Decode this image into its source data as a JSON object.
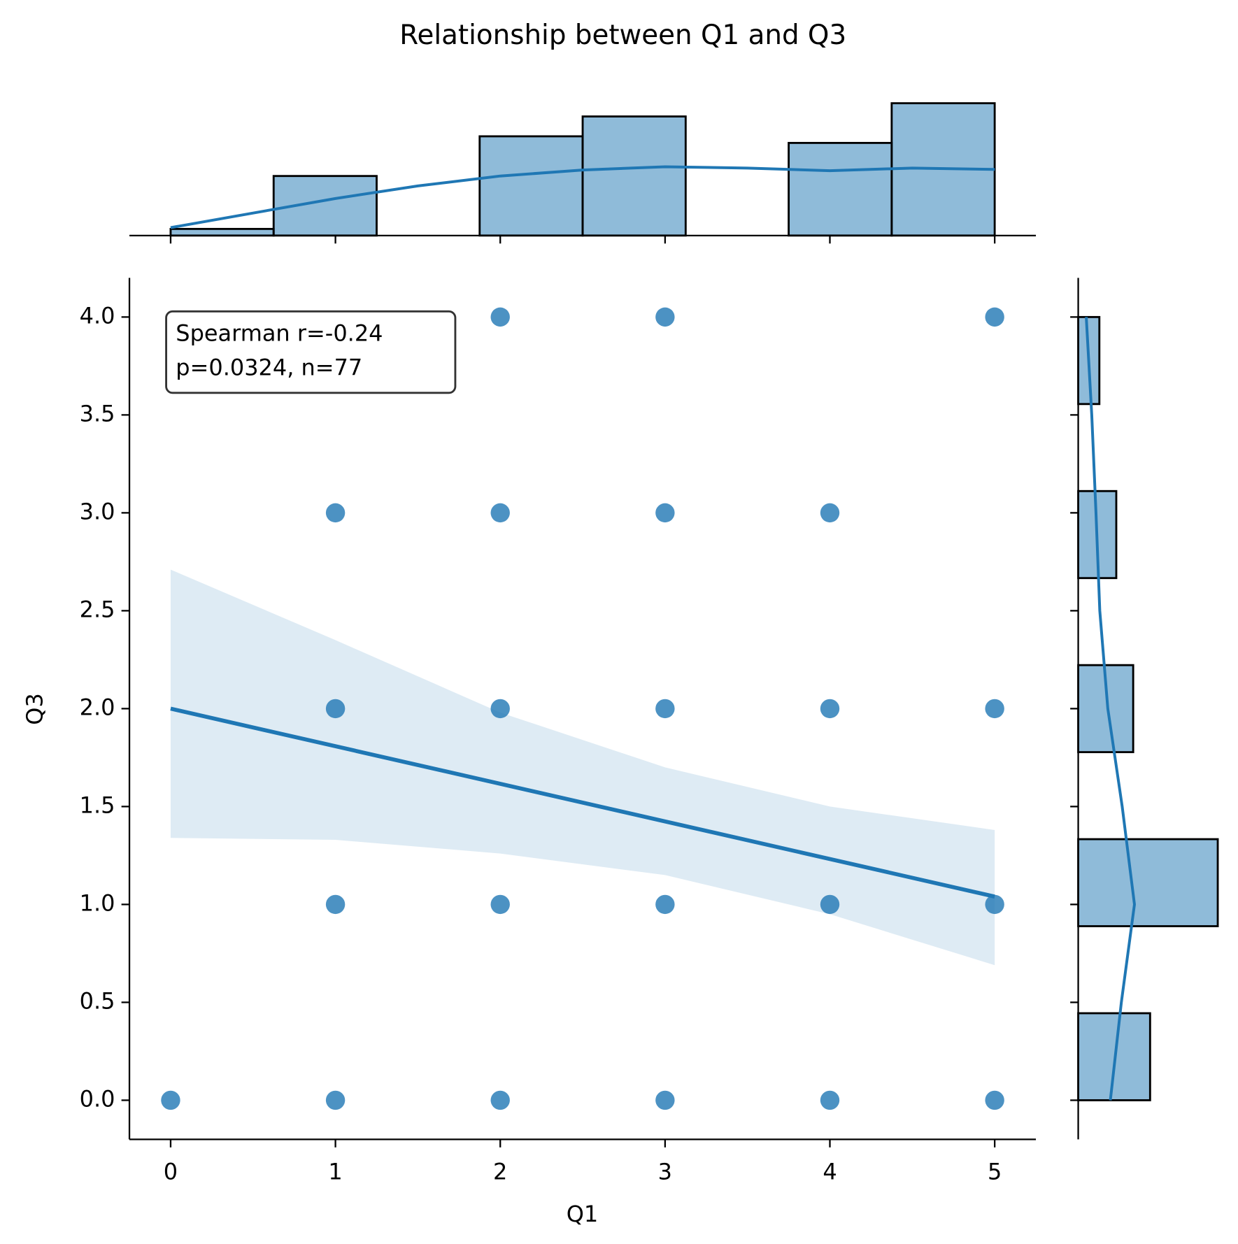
{
  "chart_data": [
    {
      "type": "scatter",
      "title": "Relationship between Q1 and Q3",
      "xlabel": "Q1",
      "ylabel": "Q3",
      "color": "#1f77b4",
      "x": [
        2,
        3,
        5,
        1,
        2,
        3,
        4,
        1,
        2,
        3,
        4,
        5,
        1,
        2,
        3,
        4,
        5,
        0,
        1,
        2,
        3,
        4,
        5
      ],
      "y": [
        4,
        4,
        4,
        3,
        3,
        3,
        3,
        2,
        2,
        2,
        2,
        2,
        1,
        1,
        1,
        1,
        1,
        0,
        0,
        0,
        0,
        0,
        0
      ],
      "regression": {
        "x": [
          0,
          5
        ],
        "y": [
          2.0,
          1.04
        ]
      },
      "ci": {
        "x": [
          0,
          1,
          2,
          3,
          4,
          5
        ],
        "upper": [
          2.71,
          2.35,
          1.98,
          1.7,
          1.5,
          1.38
        ],
        "lower": [
          1.34,
          1.33,
          1.26,
          1.15,
          0.95,
          0.69
        ]
      },
      "annotation": [
        "Spearman r=-0.24",
        "p=0.0324, n=77"
      ],
      "xlim": [
        -0.25,
        5.25
      ],
      "ylim": [
        -0.2,
        4.2
      ],
      "xticks": [
        0,
        1,
        2,
        3,
        4,
        5
      ],
      "yticks": [
        {
          "value": 0,
          "label": "0.0"
        },
        {
          "value": 0.5,
          "label": "0.5"
        },
        {
          "value": 1,
          "label": "1.0"
        },
        {
          "value": 1.5,
          "label": "1.5"
        },
        {
          "value": 2,
          "label": "2.0"
        },
        {
          "value": 2.5,
          "label": "2.5"
        },
        {
          "value": 3,
          "label": "3.0"
        },
        {
          "value": 3.5,
          "label": "3.5"
        },
        {
          "value": 4,
          "label": "4.0"
        }
      ]
    },
    {
      "type": "histogram",
      "orientation": "vertical",
      "color": "#1f77b4",
      "bins": [
        0,
        0.625,
        1.25,
        1.875,
        2.5,
        3.125,
        3.75,
        4.375,
        5
      ],
      "counts": [
        1,
        9,
        0,
        15,
        18,
        0,
        14,
        20
      ],
      "kde": {
        "x": [
          0,
          0.5,
          1,
          1.5,
          2,
          2.5,
          3,
          3.5,
          4,
          4.5,
          5
        ],
        "y": [
          1.2,
          3.4,
          5.6,
          7.5,
          9.0,
          9.9,
          10.4,
          10.2,
          9.8,
          10.2,
          10.0
        ]
      },
      "xlim": [
        -0.25,
        5.25
      ],
      "ylim": [
        0,
        21
      ],
      "xticks": [
        0,
        1,
        2,
        3,
        4,
        5
      ]
    },
    {
      "type": "histogram",
      "orientation": "horizontal",
      "color": "#1f77b4",
      "bins": [
        0,
        0.4444,
        0.8889,
        1.3333,
        1.7778,
        2.2222,
        2.6667,
        3.1111,
        3.5556,
        4
      ],
      "counts": [
        17,
        0,
        33,
        0,
        13,
        0,
        9,
        0,
        5
      ],
      "kde": {
        "y": [
          0,
          0.5,
          1,
          1.5,
          2,
          2.5,
          3,
          3.5,
          4
        ],
        "x": [
          7.6,
          10.2,
          13.3,
          10.4,
          7.0,
          5.1,
          4.2,
          3.2,
          1.9
        ]
      },
      "ylim": [
        -0.2,
        4.2
      ],
      "xlim": [
        0,
        34
      ],
      "yticks": [
        0,
        0.5,
        1,
        1.5,
        2,
        2.5,
        3,
        3.5,
        4
      ]
    }
  ]
}
